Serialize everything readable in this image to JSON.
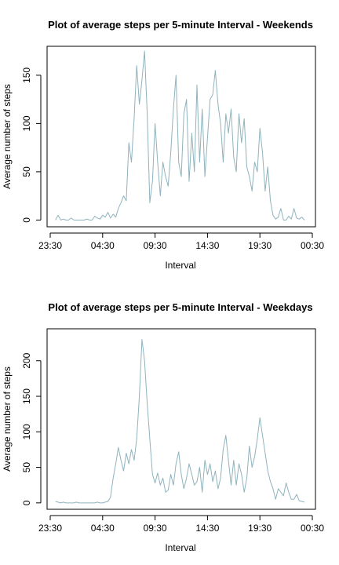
{
  "chart_data": [
    {
      "type": "line",
      "title": "Plot of average steps per 5-minute Interval - Weekends",
      "xlabel": "Interval",
      "ylabel": "Average number of steps",
      "x_ticks": [
        "23:30",
        "04:30",
        "09:30",
        "14:30",
        "19:30",
        "00:30"
      ],
      "x_tick_hours": [
        -0.5,
        4.5,
        9.5,
        14.5,
        19.5,
        24.5
      ],
      "y_ticks": [
        0,
        50,
        100,
        150
      ],
      "xlim": [
        -0.8,
        24.8
      ],
      "ylim": [
        -7,
        180
      ],
      "grid": false,
      "line_color": "#8fb3bd",
      "series": [
        {
          "x": [
            0.0,
            0.25,
            0.5,
            0.75,
            1.0,
            1.25,
            1.5,
            1.75,
            2.0,
            2.25,
            2.5,
            2.75,
            3.0,
            3.25,
            3.5,
            3.75,
            4.0,
            4.25,
            4.5,
            4.75,
            5.0,
            5.25,
            5.5,
            5.75,
            6.0,
            6.25,
            6.5,
            6.75,
            7.0,
            7.25,
            7.5,
            7.75,
            8.0,
            8.25,
            8.5,
            8.75,
            9.0,
            9.25,
            9.5,
            9.75,
            10.0,
            10.25,
            10.5,
            10.75,
            11.0,
            11.25,
            11.5,
            11.75,
            12.0,
            12.25,
            12.5,
            12.75,
            13.0,
            13.25,
            13.5,
            13.75,
            14.0,
            14.25,
            14.5,
            14.75,
            15.0,
            15.25,
            15.5,
            15.75,
            16.0,
            16.25,
            16.5,
            16.75,
            17.0,
            17.25,
            17.5,
            17.75,
            18.0,
            18.25,
            18.5,
            18.75,
            19.0,
            19.25,
            19.5,
            19.75,
            20.0,
            20.25,
            20.5,
            20.75,
            21.0,
            21.25,
            21.5,
            21.75,
            22.0,
            22.25,
            22.5,
            22.75,
            23.0,
            23.25,
            23.5,
            23.75
          ],
          "values": [
            0,
            5,
            0,
            1,
            0,
            0,
            2,
            0,
            0,
            0,
            0,
            0,
            1,
            0,
            0,
            4,
            2,
            1,
            5,
            3,
            8,
            2,
            6,
            3,
            12,
            18,
            25,
            20,
            80,
            60,
            105,
            160,
            120,
            145,
            175,
            110,
            18,
            40,
            100,
            60,
            25,
            60,
            45,
            35,
            70,
            115,
            150,
            60,
            45,
            110,
            125,
            40,
            90,
            50,
            140,
            60,
            115,
            45,
            85,
            125,
            130,
            155,
            120,
            100,
            60,
            110,
            90,
            115,
            65,
            50,
            110,
            80,
            105,
            55,
            45,
            30,
            60,
            50,
            95,
            70,
            30,
            55,
            20,
            5,
            1,
            3,
            12,
            0,
            0,
            4,
            1,
            12,
            2,
            1,
            3,
            0
          ]
        }
      ]
    },
    {
      "type": "line",
      "title": "Plot of average steps per 5-minute Interval - Weekdays",
      "xlabel": "Interval",
      "ylabel": "Average number of steps",
      "x_ticks": [
        "23:30",
        "04:30",
        "09:30",
        "14:30",
        "19:30",
        "00:30"
      ],
      "x_tick_hours": [
        -0.5,
        4.5,
        9.5,
        14.5,
        19.5,
        24.5
      ],
      "y_ticks": [
        0,
        50,
        100,
        150,
        200
      ],
      "xlim": [
        -0.8,
        24.8
      ],
      "ylim": [
        -9,
        245
      ],
      "grid": false,
      "line_color": "#8fb3bd",
      "series": [
        {
          "x": [
            0.0,
            0.25,
            0.5,
            0.75,
            1.0,
            1.25,
            1.5,
            1.75,
            2.0,
            2.25,
            2.5,
            2.75,
            3.0,
            3.25,
            3.5,
            3.75,
            4.0,
            4.25,
            4.5,
            4.75,
            5.0,
            5.25,
            5.5,
            5.75,
            6.0,
            6.25,
            6.5,
            6.75,
            7.0,
            7.25,
            7.5,
            7.75,
            8.0,
            8.25,
            8.5,
            8.75,
            9.0,
            9.25,
            9.5,
            9.75,
            10.0,
            10.25,
            10.5,
            10.75,
            11.0,
            11.25,
            11.5,
            11.75,
            12.0,
            12.25,
            12.5,
            12.75,
            13.0,
            13.25,
            13.5,
            13.75,
            14.0,
            14.25,
            14.5,
            14.75,
            15.0,
            15.25,
            15.5,
            15.75,
            16.0,
            16.25,
            16.5,
            16.75,
            17.0,
            17.25,
            17.5,
            17.75,
            18.0,
            18.25,
            18.5,
            18.75,
            19.0,
            19.25,
            19.5,
            19.75,
            20.0,
            20.25,
            20.5,
            20.75,
            21.0,
            21.25,
            21.5,
            21.75,
            22.0,
            22.25,
            22.5,
            22.75,
            23.0,
            23.25,
            23.5,
            23.75
          ],
          "values": [
            2,
            1,
            0,
            1,
            0,
            0,
            0,
            0,
            1,
            0,
            0,
            0,
            0,
            0,
            0,
            0,
            1,
            0,
            0,
            1,
            2,
            8,
            35,
            55,
            78,
            60,
            45,
            70,
            55,
            75,
            60,
            90,
            150,
            230,
            200,
            140,
            90,
            40,
            28,
            42,
            25,
            35,
            15,
            18,
            40,
            25,
            55,
            72,
            40,
            20,
            35,
            55,
            40,
            25,
            30,
            50,
            15,
            60,
            40,
            55,
            30,
            45,
            20,
            35,
            75,
            95,
            60,
            25,
            60,
            25,
            55,
            40,
            15,
            35,
            80,
            50,
            65,
            90,
            120,
            95,
            70,
            45,
            30,
            20,
            5,
            20,
            15,
            10,
            28,
            15,
            5,
            5,
            12,
            3,
            2,
            1
          ]
        }
      ]
    }
  ]
}
